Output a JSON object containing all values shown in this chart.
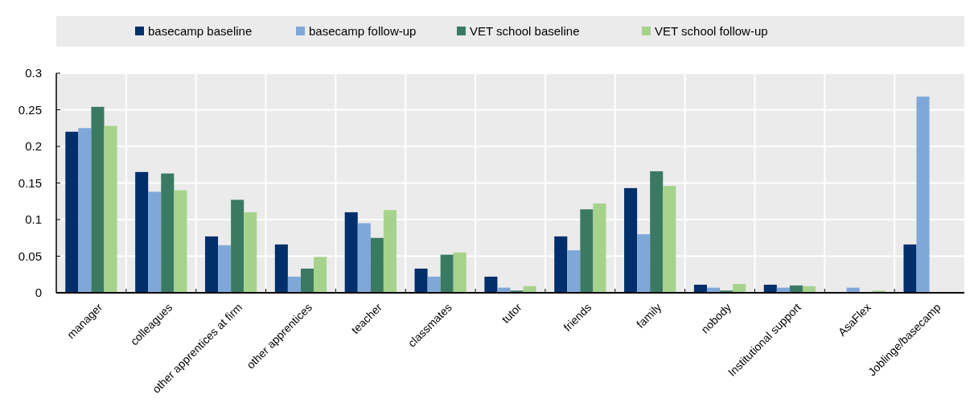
{
  "chart_data": {
    "type": "bar",
    "categories": [
      "manager",
      "colleagues",
      "other apprentices at firm",
      "other apprentices",
      "teacher",
      "classmates",
      "tutor",
      "friends",
      "family",
      "nobody",
      "Institutional support",
      "AsaFlex",
      "Joblinge/basecamp"
    ],
    "series": [
      {
        "name": "basecamp baseline",
        "color": "#002f6c",
        "values": [
          0.22,
          0.165,
          0.077,
          0.066,
          0.11,
          0.033,
          0.022,
          0.077,
          0.143,
          0.011,
          0.011,
          null,
          0.066
        ]
      },
      {
        "name": "basecamp follow-up",
        "color": "#7fa8d9",
        "values": [
          0.225,
          0.138,
          0.065,
          0.022,
          0.095,
          0.022,
          0.007,
          0.058,
          0.08,
          0.007,
          0.007,
          0.007,
          0.268
        ]
      },
      {
        "name": "VET school baseline",
        "color": "#3b7a62",
        "values": [
          0.254,
          0.163,
          0.127,
          0.033,
          0.075,
          0.052,
          0.003,
          0.114,
          0.166,
          0.003,
          0.01,
          null,
          null
        ]
      },
      {
        "name": "VET school follow-up",
        "color": "#a6d38b",
        "values": [
          0.228,
          0.14,
          0.11,
          0.049,
          0.113,
          0.055,
          0.009,
          0.122,
          0.146,
          0.012,
          0.009,
          0.003,
          null
        ]
      }
    ],
    "ylim": [
      0,
      0.3
    ],
    "yticks": [
      0,
      0.05,
      0.1,
      0.15,
      0.2,
      0.25,
      0.3
    ],
    "grid": true,
    "legend": "top"
  }
}
